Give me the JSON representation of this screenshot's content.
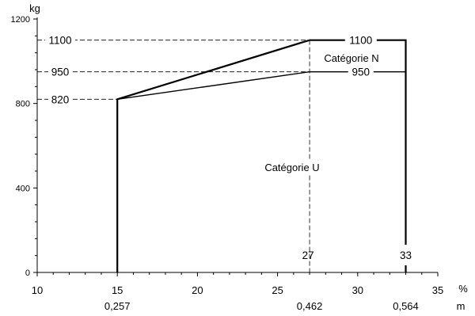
{
  "chart_data": {
    "type": "line",
    "title": "",
    "xlabel": "%",
    "ylabel": "kg",
    "xlim": [
      10,
      35
    ],
    "ylim": [
      0,
      1200
    ],
    "x_ticks": [
      "10",
      "15",
      "20",
      "25",
      "30",
      "35"
    ],
    "y_ticks": [
      "0",
      "400",
      "800",
      "1200"
    ],
    "secondary_x_label": "m",
    "secondary_x_ticks": [
      {
        "x": 15,
        "label": "0,257"
      },
      {
        "x": 27,
        "label": "0,462"
      },
      {
        "x": 33,
        "label": "0,564"
      }
    ],
    "y_markers": [
      {
        "y": 1100,
        "label": "1100"
      },
      {
        "y": 950,
        "label": "950"
      },
      {
        "y": 820,
        "label": "820"
      }
    ],
    "x_markers": [
      {
        "x": 27,
        "label": "27"
      },
      {
        "x": 33,
        "label": "33"
      }
    ],
    "series": [
      {
        "name": "",
        "values": [
          [
            15,
            0
          ],
          [
            15,
            820
          ],
          [
            27,
            1100
          ],
          [
            33,
            1100
          ],
          [
            33,
            0
          ]
        ]
      },
      {
        "name": "",
        "values": [
          [
            15,
            820
          ],
          [
            27,
            950
          ],
          [
            33,
            950
          ]
        ]
      }
    ],
    "line_labels": [
      {
        "x": 30,
        "y": 1100,
        "label": "1100"
      },
      {
        "x": 30,
        "y": 950,
        "label": "950"
      }
    ],
    "annotations": [
      {
        "x": 30,
        "y": 1025,
        "text": "Catégorie N"
      },
      {
        "x": 25.5,
        "y": 490,
        "text": "Catégorie U"
      }
    ],
    "grid": false,
    "legend": "none"
  }
}
